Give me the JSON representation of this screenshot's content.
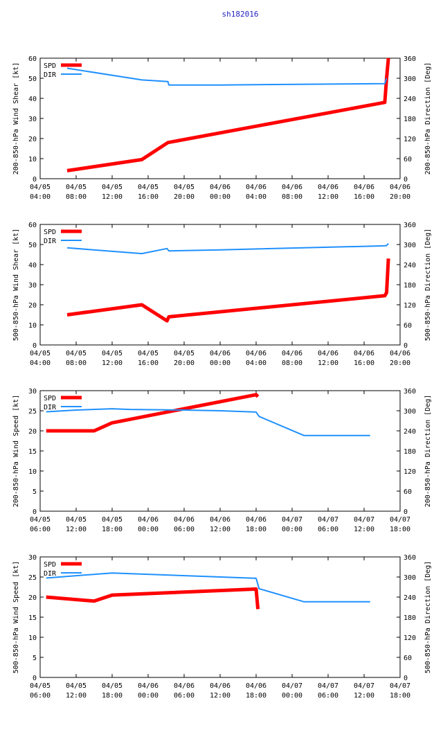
{
  "title": "sh182016",
  "colors": {
    "spd": "#ff0000",
    "dir": "#1e90ff",
    "frame": "#000000",
    "title": "#2020c0"
  },
  "chart_data": [
    {
      "type": "line",
      "y1label": "200-850-hPa Wind Shear [kt]",
      "y2label": "200-850-hPa Direction [Deg]",
      "y1lim": [
        0,
        60
      ],
      "y1ticks": [
        0,
        10,
        20,
        30,
        40,
        50,
        60
      ],
      "y2lim": [
        0,
        360
      ],
      "y2ticks": [
        0,
        60,
        120,
        180,
        240,
        300,
        360
      ],
      "xlim": [
        0,
        40
      ],
      "xticks": [
        {
          "x": 0,
          "date": "04/05",
          "time": "04:00"
        },
        {
          "x": 4,
          "date": "04/05",
          "time": "08:00"
        },
        {
          "x": 8,
          "date": "04/05",
          "time": "12:00"
        },
        {
          "x": 12,
          "date": "04/05",
          "time": "16:00"
        },
        {
          "x": 16,
          "date": "04/05",
          "time": "20:00"
        },
        {
          "x": 20,
          "date": "04/06",
          "time": "00:00"
        },
        {
          "x": 24,
          "date": "04/06",
          "time": "04:00"
        },
        {
          "x": 28,
          "date": "04/06",
          "time": "08:00"
        },
        {
          "x": 32,
          "date": "04/06",
          "time": "12:00"
        },
        {
          "x": 36,
          "date": "04/06",
          "time": "16:00"
        },
        {
          "x": 40,
          "date": "04/06",
          "time": "20:00"
        }
      ],
      "series": [
        {
          "name": "SPD",
          "axis": "y1",
          "color": "#ff0000",
          "width": 5,
          "x": [
            3,
            11.3,
            14.2,
            38.3,
            38.5,
            38.7
          ],
          "y": [
            4,
            9.5,
            18,
            38,
            50,
            60
          ]
        },
        {
          "name": "DIR",
          "axis": "y2",
          "color": "#1e90ff",
          "width": 2,
          "x": [
            3,
            11.3,
            14.2,
            14.3,
            20,
            38.3,
            38.5
          ],
          "y": [
            330,
            295,
            290,
            280,
            280,
            284,
            300
          ]
        }
      ]
    },
    {
      "type": "line",
      "y1label": "500-850-hPa Wind Shear [kt]",
      "y2label": "500-850-hPa Direction [Deg]",
      "y1lim": [
        0,
        60
      ],
      "y1ticks": [
        0,
        10,
        20,
        30,
        40,
        50,
        60
      ],
      "y2lim": [
        0,
        360
      ],
      "y2ticks": [
        0,
        60,
        120,
        180,
        240,
        300,
        360
      ],
      "xlim": [
        0,
        40
      ],
      "xticks": [
        {
          "x": 0,
          "date": "04/05",
          "time": "04:00"
        },
        {
          "x": 4,
          "date": "04/05",
          "time": "08:00"
        },
        {
          "x": 8,
          "date": "04/05",
          "time": "12:00"
        },
        {
          "x": 12,
          "date": "04/05",
          "time": "16:00"
        },
        {
          "x": 16,
          "date": "04/05",
          "time": "20:00"
        },
        {
          "x": 20,
          "date": "04/06",
          "time": "00:00"
        },
        {
          "x": 24,
          "date": "04/06",
          "time": "04:00"
        },
        {
          "x": 28,
          "date": "04/06",
          "time": "08:00"
        },
        {
          "x": 32,
          "date": "04/06",
          "time": "12:00"
        },
        {
          "x": 36,
          "date": "04/06",
          "time": "16:00"
        },
        {
          "x": 40,
          "date": "04/06",
          "time": "20:00"
        }
      ],
      "series": [
        {
          "name": "SPD",
          "axis": "y1",
          "color": "#ff0000",
          "width": 5,
          "x": [
            3,
            11.3,
            14.1,
            14.3,
            38.3,
            38.5,
            38.7
          ],
          "y": [
            15,
            20,
            12,
            14,
            24.5,
            26,
            43
          ]
        },
        {
          "name": "DIR",
          "axis": "y2",
          "color": "#1e90ff",
          "width": 2,
          "x": [
            3,
            11.3,
            14.1,
            14.3,
            20,
            38.3,
            38.5,
            38.7
          ],
          "y": [
            290,
            273,
            288,
            281,
            284,
            296,
            297,
            303
          ]
        }
      ]
    },
    {
      "type": "line",
      "y1label": "200-850-hPa Wind Speed [kt]",
      "y2label": "200-850-hPa Direction [Deg]",
      "y1lim": [
        0,
        30
      ],
      "y1ticks": [
        0,
        5,
        10,
        15,
        20,
        25,
        30
      ],
      "y2lim": [
        0,
        360
      ],
      "y2ticks": [
        0,
        60,
        120,
        180,
        240,
        300,
        360
      ],
      "xlim": [
        0,
        60
      ],
      "xticks": [
        {
          "x": 0,
          "date": "04/05",
          "time": "06:00"
        },
        {
          "x": 6,
          "date": "04/05",
          "time": "12:00"
        },
        {
          "x": 12,
          "date": "04/05",
          "time": "18:00"
        },
        {
          "x": 18,
          "date": "04/06",
          "time": "00:00"
        },
        {
          "x": 24,
          "date": "04/06",
          "time": "06:00"
        },
        {
          "x": 30,
          "date": "04/06",
          "time": "12:00"
        },
        {
          "x": 36,
          "date": "04/06",
          "time": "18:00"
        },
        {
          "x": 42,
          "date": "04/07",
          "time": "00:00"
        },
        {
          "x": 48,
          "date": "04/07",
          "time": "06:00"
        },
        {
          "x": 54,
          "date": "04/07",
          "time": "12:00"
        },
        {
          "x": 60,
          "date": "04/07",
          "time": "18:00"
        }
      ],
      "series": [
        {
          "name": "SPD",
          "axis": "y1",
          "color": "#ff0000",
          "width": 5,
          "x": [
            1,
            9,
            12,
            36,
            36.3
          ],
          "y": [
            20,
            20,
            22,
            29,
            28.5
          ]
        },
        {
          "name": "DIR",
          "axis": "y2",
          "color": "#1e90ff",
          "width": 2,
          "x": [
            1,
            6,
            12,
            15,
            24,
            30,
            36,
            36.5,
            44,
            55
          ],
          "y": [
            297,
            302,
            306,
            304,
            302,
            300,
            296,
            283,
            226,
            226
          ]
        }
      ]
    },
    {
      "type": "line",
      "y1label": "500-850-hPa Wind Speed [kt]",
      "y2label": "500-850-hPa Direction [Deg]",
      "y1lim": [
        0,
        30
      ],
      "y1ticks": [
        0,
        5,
        10,
        15,
        20,
        25,
        30
      ],
      "y2lim": [
        0,
        360
      ],
      "y2ticks": [
        0,
        60,
        120,
        180,
        240,
        300,
        360
      ],
      "xlim": [
        0,
        60
      ],
      "xticks": [
        {
          "x": 0,
          "date": "04/05",
          "time": "06:00"
        },
        {
          "x": 6,
          "date": "04/05",
          "time": "12:00"
        },
        {
          "x": 12,
          "date": "04/05",
          "time": "18:00"
        },
        {
          "x": 18,
          "date": "04/06",
          "time": "00:00"
        },
        {
          "x": 24,
          "date": "04/06",
          "time": "06:00"
        },
        {
          "x": 30,
          "date": "04/06",
          "time": "12:00"
        },
        {
          "x": 36,
          "date": "04/06",
          "time": "18:00"
        },
        {
          "x": 42,
          "date": "04/07",
          "time": "00:00"
        },
        {
          "x": 48,
          "date": "04/07",
          "time": "06:00"
        },
        {
          "x": 54,
          "date": "04/07",
          "time": "12:00"
        },
        {
          "x": 60,
          "date": "04/07",
          "time": "18:00"
        }
      ],
      "series": [
        {
          "name": "SPD",
          "axis": "y1",
          "color": "#ff0000",
          "width": 5,
          "x": [
            1,
            9,
            12,
            36,
            36.3
          ],
          "y": [
            20,
            19,
            20.5,
            22,
            17
          ]
        },
        {
          "name": "DIR",
          "axis": "y2",
          "color": "#1e90ff",
          "width": 2,
          "x": [
            1,
            12,
            36,
            36.5,
            44,
            55
          ],
          "y": [
            297,
            312,
            296,
            265,
            226,
            226
          ]
        }
      ]
    }
  ]
}
